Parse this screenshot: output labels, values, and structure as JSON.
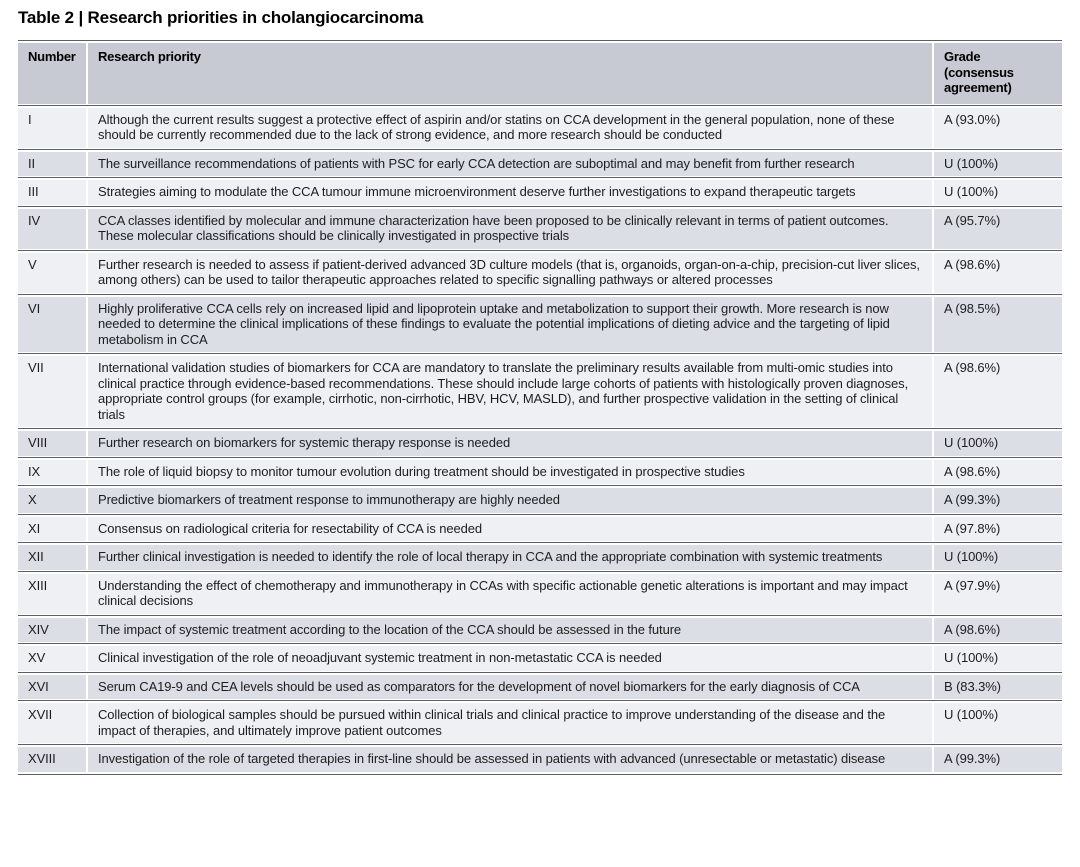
{
  "title": "Table 2 | Research priorities in cholangiocarcinoma",
  "columns": {
    "number": "Number",
    "priority": "Research priority",
    "grade": "Grade (consensus agreement)"
  },
  "rows": [
    {
      "number": "I",
      "priority": "Although the current results suggest a protective effect of aspirin and/or statins on CCA development in the general population, none of these should be currently recommended due to the lack of strong evidence, and more research should be conducted",
      "grade": "A (93.0%)"
    },
    {
      "number": "II",
      "priority": "The surveillance recommendations of patients with PSC for early CCA detection are suboptimal and may benefit from further research",
      "grade": "U (100%)"
    },
    {
      "number": "III",
      "priority": "Strategies aiming to modulate the CCA tumour immune microenvironment deserve further investigations to expand therapeutic targets",
      "grade": "U (100%)"
    },
    {
      "number": "IV",
      "priority": "CCA classes identified by molecular and immune characterization have been proposed to be clinically relevant in terms of patient outcomes. These molecular classifications should be clinically investigated in prospective trials",
      "grade": "A (95.7%)"
    },
    {
      "number": "V",
      "priority": "Further research is needed to assess if patient-derived advanced 3D culture models (that is, organoids, organ-on-a-chip, precision-cut liver slices, among others) can be used to tailor therapeutic approaches related to specific signalling pathways or altered processes",
      "grade": "A (98.6%)"
    },
    {
      "number": "VI",
      "priority": "Highly proliferative CCA cells rely on increased lipid and lipoprotein uptake and metabolization to support their growth. More research is now needed to determine the clinical implications of these findings to evaluate the potential implications of dieting advice and the targeting of lipid metabolism in CCA",
      "grade": "A (98.5%)"
    },
    {
      "number": "VII",
      "priority": "International validation studies of biomarkers for CCA are mandatory to translate the preliminary results available from multi-omic studies into clinical practice through evidence-based recommendations. These should include large cohorts of patients with histologically proven diagnoses, appropriate control groups (for example, cirrhotic, non-cirrhotic, HBV, HCV, MASLD), and further prospective validation in the setting of clinical trials",
      "grade": "A (98.6%)"
    },
    {
      "number": "VIII",
      "priority": "Further research on biomarkers for systemic therapy response is needed",
      "grade": "U (100%)"
    },
    {
      "number": "IX",
      "priority": "The role of liquid biopsy to monitor tumour evolution during treatment should be investigated in prospective studies",
      "grade": "A (98.6%)"
    },
    {
      "number": "X",
      "priority": "Predictive biomarkers of treatment response to immunotherapy are highly needed",
      "grade": "A (99.3%)"
    },
    {
      "number": "XI",
      "priority": "Consensus on radiological criteria for resectability of CCA is needed",
      "grade": "A (97.8%)"
    },
    {
      "number": "XII",
      "priority": "Further clinical investigation is needed to identify the role of local therapy in CCA and the appropriate combination with systemic treatments",
      "grade": "U (100%)"
    },
    {
      "number": "XIII",
      "priority": "Understanding the effect of chemotherapy and immunotherapy in CCAs with specific actionable genetic alterations is important and may impact clinical decisions",
      "grade": "A (97.9%)"
    },
    {
      "number": "XIV",
      "priority": "The impact of systemic treatment according to the location of the CCA should be assessed in the future",
      "grade": "A (98.6%)"
    },
    {
      "number": "XV",
      "priority": "Clinical investigation of the role of neoadjuvant systemic treatment in non-metastatic CCA is needed",
      "grade": "U (100%)"
    },
    {
      "number": "XVI",
      "priority": "Serum CA19-9 and CEA levels should be used as comparators for the development of novel biomarkers for the early diagnosis of CCA",
      "grade": "B (83.3%)"
    },
    {
      "number": "XVII",
      "priority": "Collection of biological samples should be pursued within clinical trials and clinical practice to improve understanding of the disease and the impact of therapies, and ultimately improve patient outcomes",
      "grade": "U (100%)"
    },
    {
      "number": "XVIII",
      "priority": "Investigation of the role of targeted therapies in first-line should be assessed in patients with advanced (unresectable or metastatic) disease",
      "grade": "A (99.3%)"
    }
  ],
  "colors": {
    "header_bg": "#c7c9d3",
    "row_light": "#eff0f4",
    "row_dark": "#dcdee5",
    "rule": "#5c5e64",
    "text": "#1d1d1f"
  }
}
